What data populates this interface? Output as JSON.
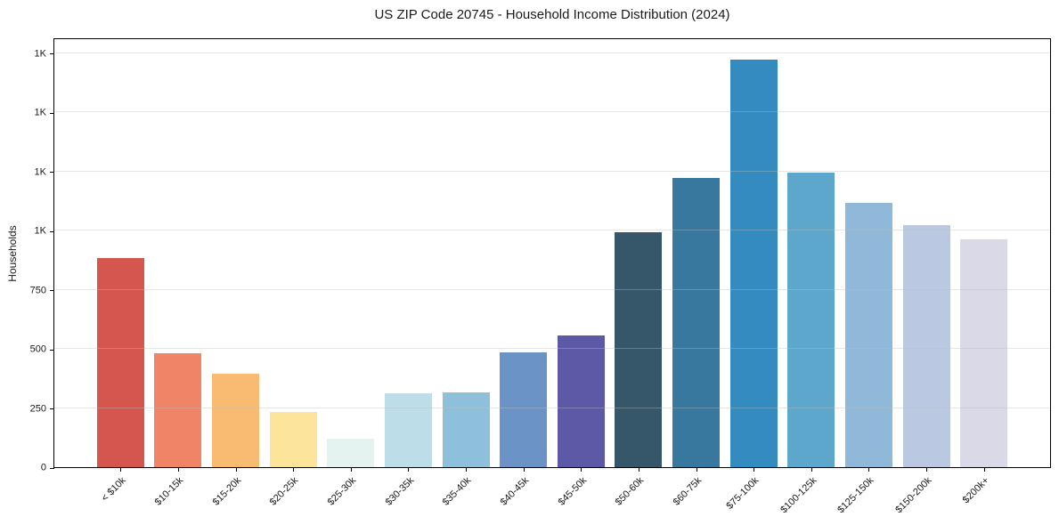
{
  "figure": {
    "title": "US ZIP Code 20745 - Household Income Distribution (2024)",
    "ylabel": "Households"
  },
  "chart_data": {
    "type": "bar",
    "title": "US ZIP Code 20745 - Household Income Distribution (2024)",
    "xlabel": "",
    "ylabel": "Households",
    "categories": [
      "< $10k",
      "$10-15k",
      "$15-20k",
      "$20-25k",
      "$25-30k",
      "$30-35k",
      "$35-40k",
      "$40-45k",
      "$45-50k",
      "$50-60k",
      "$60-75k",
      "$75-100k",
      "$100-125k",
      "$125-150k",
      "$150-200k",
      "$200k+"
    ],
    "values": [
      886,
      481,
      396,
      235,
      121,
      314,
      318,
      487,
      558,
      995,
      1224,
      1724,
      1245,
      1116,
      1025,
      965
    ],
    "bar_colors": [
      "#d4564f",
      "#ef8466",
      "#f9ba71",
      "#fce49a",
      "#e4f2f0",
      "#bddee9",
      "#8fc0db",
      "#6b93c5",
      "#5c5aa7",
      "#36566a",
      "#38789f",
      "#338bc0",
      "#5da7cc",
      "#90b9d9",
      "#bac9e1",
      "#dad9e7"
    ],
    "ylim": [
      0,
      1810
    ],
    "y_ticks": [
      {
        "value": 0,
        "label": "0"
      },
      {
        "value": 250,
        "label": "250"
      },
      {
        "value": 500,
        "label": "500"
      },
      {
        "value": 750,
        "label": "750"
      },
      {
        "value": 1000,
        "label": "1K"
      },
      {
        "value": 1250,
        "label": "1K"
      },
      {
        "value": 1500,
        "label": "1K"
      },
      {
        "value": 1750,
        "label": "1K"
      }
    ],
    "grid": "horizontal",
    "legend": "none",
    "style": {
      "background": "#ffffff",
      "text_color": "#1a1a1a",
      "spine_color": "#000000",
      "grid_color": "#e7e7e7"
    }
  }
}
